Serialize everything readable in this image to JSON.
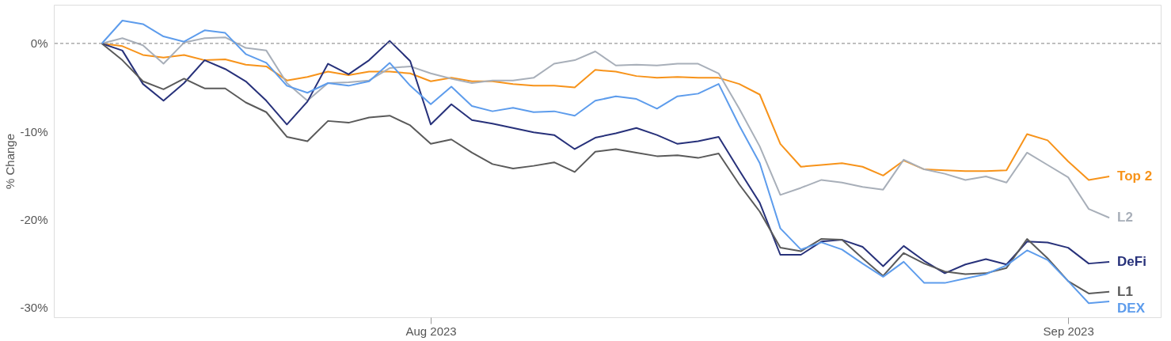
{
  "chart_data": {
    "type": "line",
    "ylabel": "% Change",
    "x": [
      "2023-07-16",
      "2023-07-17",
      "2023-07-18",
      "2023-07-19",
      "2023-07-20",
      "2023-07-21",
      "2023-07-22",
      "2023-07-23",
      "2023-07-24",
      "2023-07-25",
      "2023-07-26",
      "2023-07-27",
      "2023-07-28",
      "2023-07-29",
      "2023-07-30",
      "2023-07-31",
      "2023-08-01",
      "2023-08-02",
      "2023-08-03",
      "2023-08-04",
      "2023-08-05",
      "2023-08-06",
      "2023-08-07",
      "2023-08-08",
      "2023-08-09",
      "2023-08-10",
      "2023-08-11",
      "2023-08-12",
      "2023-08-13",
      "2023-08-14",
      "2023-08-15",
      "2023-08-16",
      "2023-08-17",
      "2023-08-18",
      "2023-08-19",
      "2023-08-20",
      "2023-08-21",
      "2023-08-22",
      "2023-08-23",
      "2023-08-24",
      "2023-08-25",
      "2023-08-26",
      "2023-08-27",
      "2023-08-28",
      "2023-08-29",
      "2023-08-30",
      "2023-08-31",
      "2023-09-01",
      "2023-09-02",
      "2023-09-03"
    ],
    "series": [
      {
        "name": "Top 2",
        "color": "#f7931a",
        "values": [
          0,
          -0.3,
          -1.3,
          -1.6,
          -1.3,
          -1.9,
          -1.8,
          -2.4,
          -2.6,
          -4.2,
          -3.8,
          -3.2,
          -3.6,
          -3.2,
          -3.2,
          -3.4,
          -4.3,
          -3.9,
          -4.3,
          -4.3,
          -4.6,
          -4.8,
          -4.8,
          -5.0,
          -3.0,
          -3.2,
          -3.7,
          -3.9,
          -3.8,
          -3.9,
          -3.9,
          -4.6,
          -5.8,
          -11.4,
          -14.0,
          -13.8,
          -13.6,
          -14.0,
          -15.0,
          -13.3,
          -14.3,
          -14.4,
          -14.5,
          -14.5,
          -14.4,
          -10.3,
          -11.0,
          -13.4,
          -15.5,
          -15.1
        ]
      },
      {
        "name": "L2",
        "color": "#a8afb9",
        "values": [
          0,
          0.6,
          -0.2,
          -2.3,
          0.1,
          0.6,
          0.7,
          -0.5,
          -0.8,
          -4.5,
          -6.5,
          -4.5,
          -4.4,
          -4.2,
          -2.8,
          -2.6,
          -3.4,
          -4.0,
          -4.5,
          -4.2,
          -4.2,
          -3.9,
          -2.3,
          -1.9,
          -0.9,
          -2.5,
          -2.4,
          -2.5,
          -2.3,
          -2.3,
          -3.4,
          -7.4,
          -11.7,
          -17.2,
          -16.4,
          -15.5,
          -15.8,
          -16.3,
          -16.6,
          -13.2,
          -14.3,
          -14.8,
          -15.5,
          -15.1,
          -15.8,
          -12.4,
          -13.8,
          -15.2,
          -18.8,
          -19.8
        ]
      },
      {
        "name": "DeFi",
        "color": "#27317a",
        "values": [
          0,
          -0.8,
          -4.6,
          -6.5,
          -4.5,
          -1.9,
          -2.9,
          -4.3,
          -6.5,
          -9.2,
          -6.6,
          -2.3,
          -3.5,
          -1.9,
          0.3,
          -2.0,
          -9.2,
          -6.9,
          -8.7,
          -9.1,
          -9.6,
          -10.1,
          -10.4,
          -12.0,
          -10.7,
          -10.2,
          -9.6,
          -10.4,
          -11.4,
          -11.1,
          -10.6,
          -14.4,
          -18.1,
          -24.0,
          -24.0,
          -22.5,
          -22.3,
          -23.1,
          -25.3,
          -23.0,
          -24.7,
          -26.1,
          -25.1,
          -24.5,
          -25.1,
          -22.5,
          -22.6,
          -23.2,
          -25.0,
          -24.8
        ]
      },
      {
        "name": "L1",
        "color": "#5a5a5a",
        "values": [
          0,
          -1.9,
          -4.3,
          -5.2,
          -4.0,
          -5.1,
          -5.1,
          -6.7,
          -7.8,
          -10.6,
          -11.1,
          -8.8,
          -9.0,
          -8.4,
          -8.2,
          -9.3,
          -11.4,
          -10.9,
          -12.4,
          -13.7,
          -14.2,
          -13.9,
          -13.5,
          -14.6,
          -12.3,
          -12.0,
          -12.4,
          -12.8,
          -12.7,
          -13.0,
          -12.5,
          -16.0,
          -19.1,
          -23.2,
          -23.6,
          -22.2,
          -22.3,
          -24.4,
          -26.4,
          -23.8,
          -25.0,
          -25.9,
          -26.2,
          -26.1,
          -25.5,
          -22.2,
          -24.4,
          -27.0,
          -28.4,
          -28.2
        ]
      },
      {
        "name": "DEX",
        "color": "#5d9cec",
        "values": [
          0,
          2.6,
          2.2,
          0.8,
          0.2,
          1.5,
          1.2,
          -1.2,
          -2.2,
          -4.8,
          -5.6,
          -4.5,
          -4.8,
          -4.3,
          -2.2,
          -4.8,
          -6.9,
          -4.9,
          -7.1,
          -7.7,
          -7.3,
          -7.8,
          -7.7,
          -8.2,
          -6.5,
          -6.0,
          -6.3,
          -7.4,
          -6.0,
          -5.7,
          -4.6,
          -9.3,
          -13.6,
          -21.0,
          -23.4,
          -22.6,
          -23.4,
          -25.0,
          -26.5,
          -24.8,
          -27.2,
          -27.2,
          -26.7,
          -26.2,
          -25.2,
          -23.5,
          -24.6,
          -27.0,
          -29.5,
          -29.3
        ]
      }
    ],
    "xlim": [
      "2023-07-13T16:00",
      "2023-09-05T12:00"
    ],
    "xticks": [
      {
        "value": "2023-08-01",
        "label": "Aug 2023"
      },
      {
        "value": "2023-09-01",
        "label": "Sep 2023"
      }
    ],
    "ylim": [
      -31.1,
      4.4
    ],
    "yticks": [
      {
        "value": 0,
        "label": "0%"
      },
      {
        "value": -10,
        "label": "-10%"
      },
      {
        "value": -20,
        "label": "-20%"
      },
      {
        "value": -30,
        "label": "-30%"
      }
    ],
    "ref_lines": [
      {
        "axis": "y",
        "value": 0,
        "color": "#999999",
        "line_style": "dashed"
      }
    ],
    "grid": false,
    "legend": false
  }
}
